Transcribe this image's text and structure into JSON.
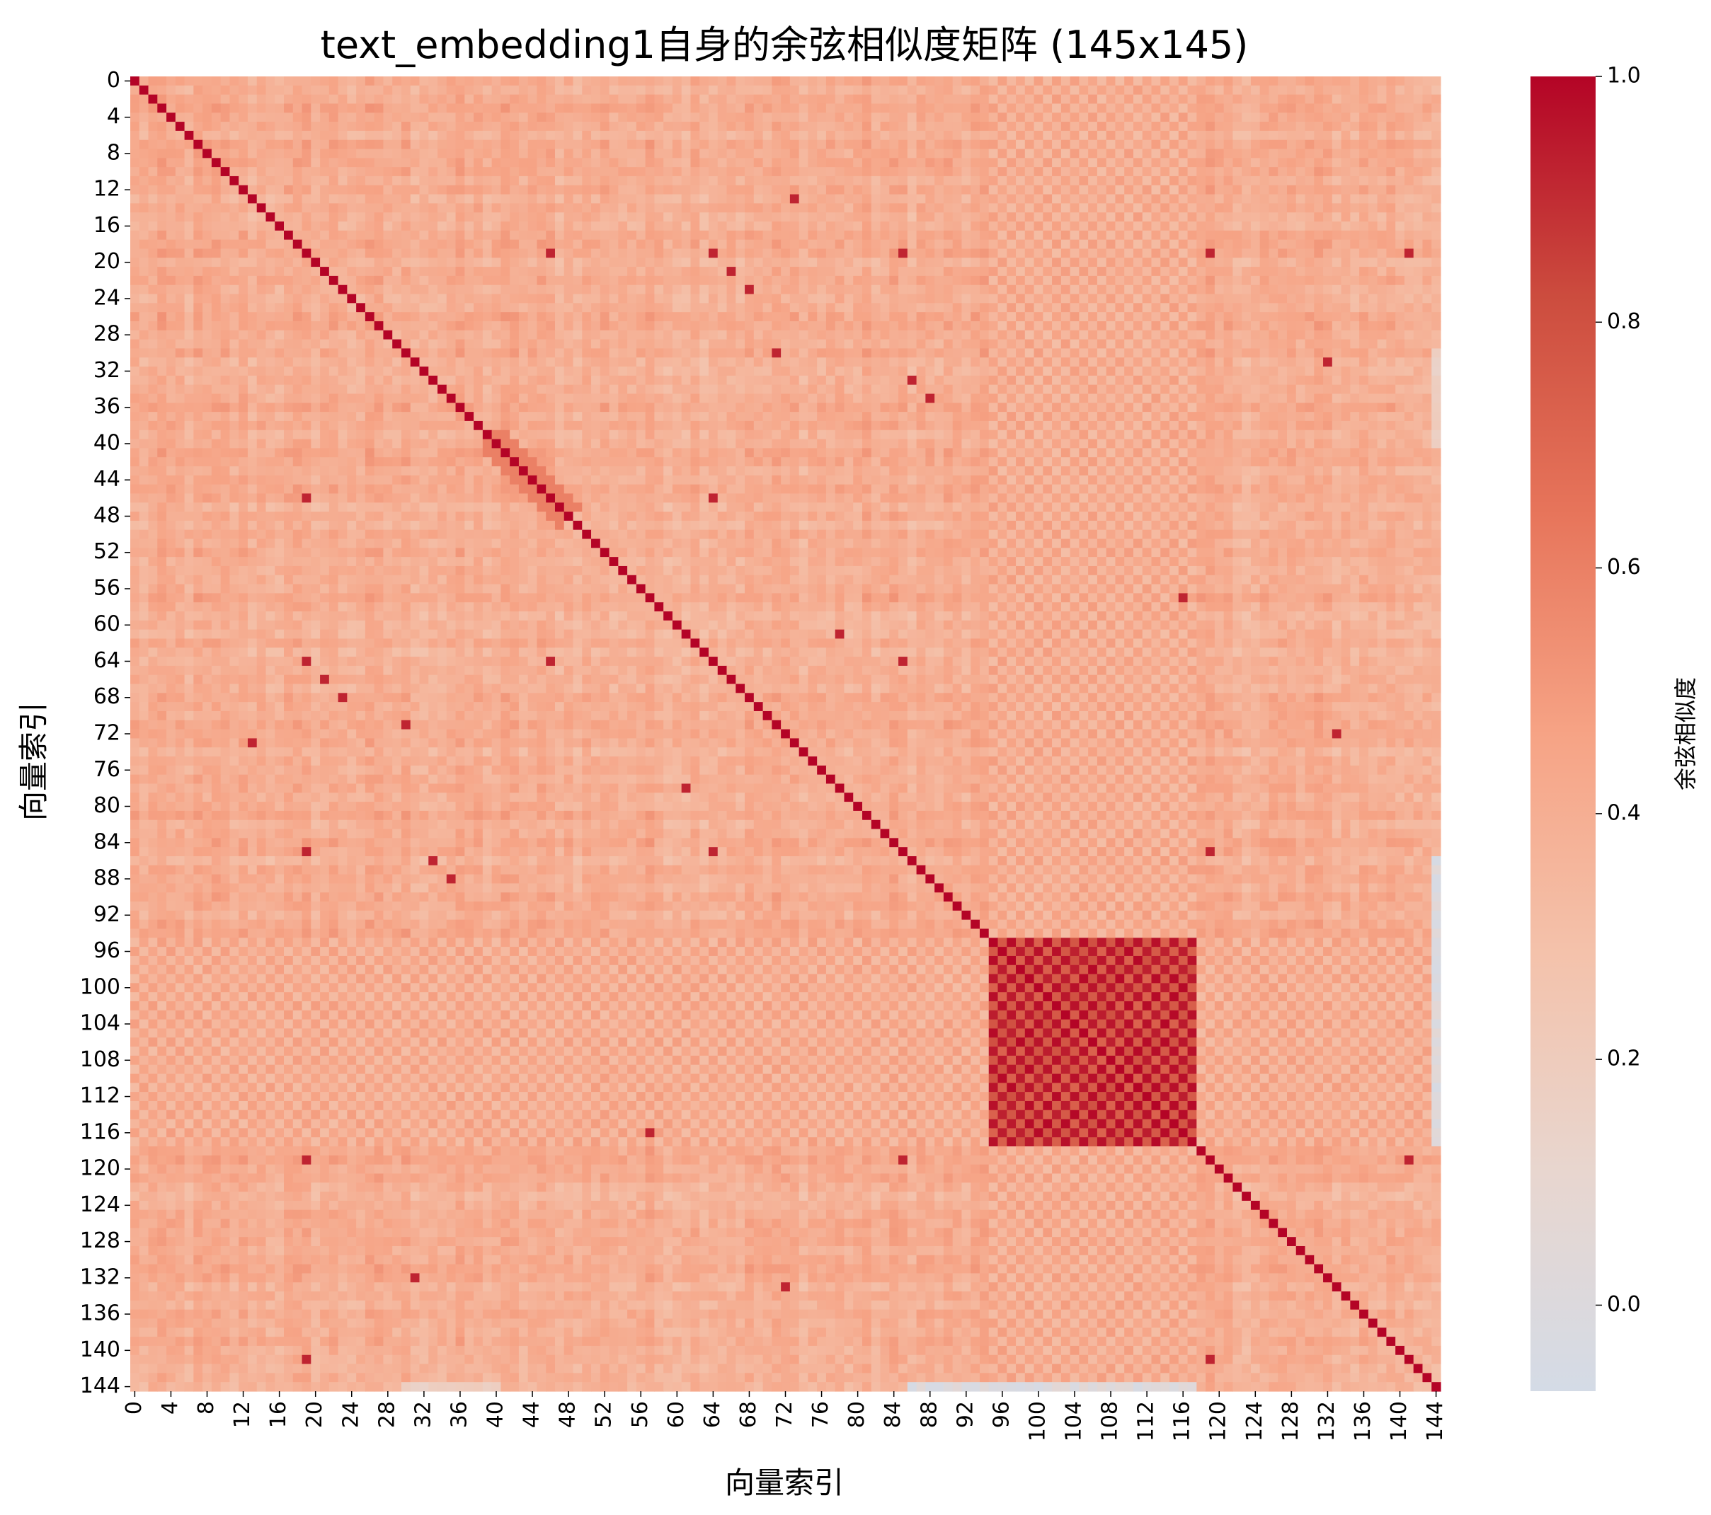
{
  "chart_data": {
    "type": "heatmap",
    "title": "text_embedding1自身的余弦相似度矩阵 (145x145)",
    "xlabel": "向量索引",
    "ylabel": "向量索引",
    "size": 145,
    "tick_step": 4,
    "x_ticks": [
      "0",
      "4",
      "8",
      "12",
      "16",
      "20",
      "24",
      "28",
      "32",
      "36",
      "40",
      "44",
      "48",
      "52",
      "56",
      "60",
      "64",
      "68",
      "72",
      "76",
      "80",
      "84",
      "88",
      "92",
      "96",
      "100",
      "104",
      "108",
      "112",
      "116",
      "120",
      "124",
      "128",
      "132",
      "136",
      "140",
      "144"
    ],
    "y_ticks": [
      "0",
      "4",
      "8",
      "12",
      "16",
      "20",
      "24",
      "28",
      "32",
      "36",
      "40",
      "44",
      "48",
      "52",
      "56",
      "60",
      "64",
      "68",
      "72",
      "76",
      "80",
      "84",
      "88",
      "92",
      "96",
      "100",
      "104",
      "108",
      "112",
      "116",
      "120",
      "124",
      "128",
      "132",
      "136",
      "140",
      "144"
    ],
    "colorbar": {
      "label": "余弦相似度",
      "vmin": -0.07,
      "vmax": 1.0,
      "ticks": [
        "0.0",
        "0.2",
        "0.4",
        "0.6",
        "0.8",
        "1.0"
      ],
      "colormap": "coolwarm-upper",
      "colors": [
        "#d4dbe6",
        "#e8d6cf",
        "#f4c2ab",
        "#f6a385",
        "#e7755b",
        "#cc4c3e",
        "#b40426"
      ]
    },
    "diagonal_value": 1.0,
    "typical_value_range": [
      0.3,
      0.5
    ],
    "high_similarity_block": {
      "rows": [
        95,
        117
      ],
      "cols": [
        95,
        117
      ],
      "pattern": "checkerboard",
      "values": [
        0.75,
        1.0
      ]
    },
    "low_similarity_region": {
      "rows": [
        144,
        144
      ],
      "cols": [
        86,
        117
      ],
      "values": [
        -0.05,
        0.1
      ]
    }
  }
}
